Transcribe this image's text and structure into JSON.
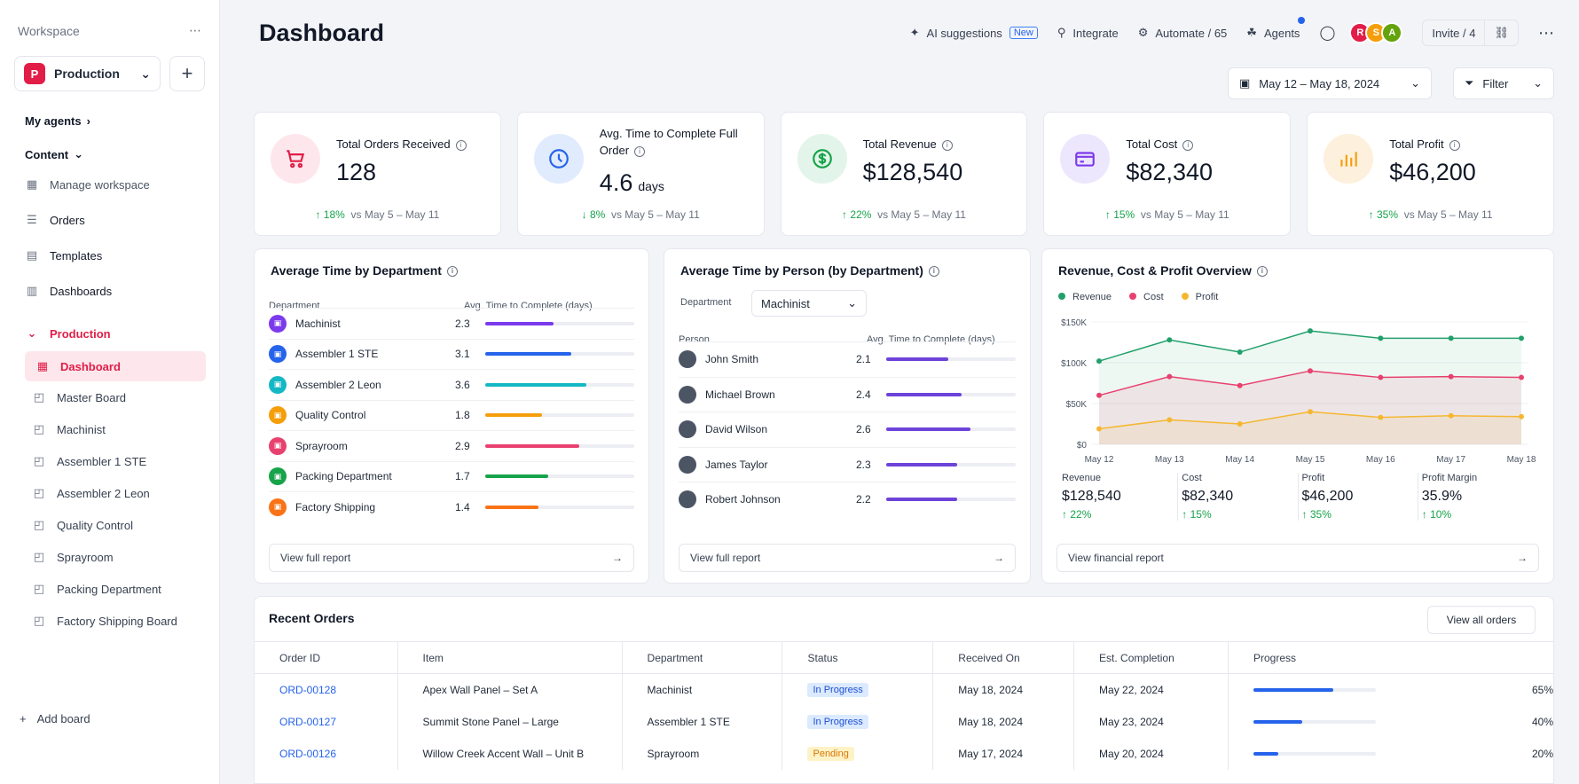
{
  "sidebar": {
    "workspace_label": "Workspace",
    "workspace_badge": "P",
    "workspace_name": "Production",
    "my_agents": "My agents",
    "content": "Content",
    "manage_workspace": "Manage workspace",
    "orders": "Orders",
    "templates": "Templates",
    "dashboards": "Dashboards",
    "production": "Production",
    "boards": [
      "Dashboard",
      "Master Board",
      "Machinist",
      "Assembler 1 STE",
      "Assembler 2 Leon",
      "Quality Control",
      "Sprayroom",
      "Packing Department",
      "Factory Shipping Board"
    ],
    "add_board": "Add board"
  },
  "header": {
    "title": "Dashboard",
    "ai_suggestions": "AI suggestions",
    "new_tag": "New",
    "integrate": "Integrate",
    "automate": "Automate / 65",
    "agents": "Agents",
    "avatars": [
      "R",
      "S",
      "A"
    ],
    "invite": "Invite / 4",
    "date_range": "May 12 – May 18, 2024",
    "filter": "Filter"
  },
  "kpis": [
    {
      "label": "Total Orders Received",
      "value": "128",
      "unit": "",
      "delta": "18%",
      "dir": "up",
      "compare": "vs May 5 – May 11",
      "color": "#e11d48",
      "bg": "#fde7ec"
    },
    {
      "label": "Avg. Time to Complete Full Order",
      "value": "4.6",
      "unit": "days",
      "delta": "8%",
      "dir": "down",
      "compare": "vs May 5 – May 11",
      "color": "#2563eb",
      "bg": "#e0ebfd"
    },
    {
      "label": "Total Revenue",
      "value": "$128,540",
      "unit": "",
      "delta": "22%",
      "dir": "up",
      "compare": "vs May 5 – May 11",
      "color": "#16a34a",
      "bg": "#e3f5ea"
    },
    {
      "label": "Total Cost",
      "value": "$82,340",
      "unit": "",
      "delta": "15%",
      "dir": "up",
      "compare": "vs May 5 – May 11",
      "color": "#7c3aed",
      "bg": "#ede7fd"
    },
    {
      "label": "Total Profit",
      "value": "$46,200",
      "unit": "",
      "delta": "35%",
      "dir": "up",
      "compare": "vs May 5 – May 11",
      "color": "#f59e0b",
      "bg": "#fdf0dc"
    }
  ],
  "dept_panel": {
    "title": "Average Time by Department",
    "col_dept": "Department",
    "col_avg": "Avg. Time to Complete (days)",
    "rows": [
      {
        "name": "Machinist",
        "value": "2.3",
        "frac": 0.46,
        "color": "#7c3aed"
      },
      {
        "name": "Assembler 1 STE",
        "value": "3.1",
        "frac": 0.58,
        "color": "#2563eb"
      },
      {
        "name": "Assembler 2 Leon",
        "value": "3.6",
        "frac": 0.68,
        "color": "#14b8c4"
      },
      {
        "name": "Quality Control",
        "value": "1.8",
        "frac": 0.38,
        "color": "#f59e0b"
      },
      {
        "name": "Sprayroom",
        "value": "2.9",
        "frac": 0.63,
        "color": "#e8416f"
      },
      {
        "name": "Packing Department",
        "value": "1.7",
        "frac": 0.42,
        "color": "#16a34a"
      },
      {
        "name": "Factory Shipping",
        "value": "1.4",
        "frac": 0.36,
        "color": "#f97316"
      }
    ],
    "view": "View full report"
  },
  "person_panel": {
    "title": "Average Time by Person (by Department)",
    "dept_label": "Department",
    "dept_value": "Machinist",
    "col_person": "Person",
    "col_avg": "Avg. Time to Complete (days)",
    "rows": [
      {
        "name": "John Smith",
        "value": "2.1",
        "frac": 0.48
      },
      {
        "name": "Michael Brown",
        "value": "2.4",
        "frac": 0.58
      },
      {
        "name": "David Wilson",
        "value": "2.6",
        "frac": 0.65
      },
      {
        "name": "James Taylor",
        "value": "2.3",
        "frac": 0.55
      },
      {
        "name": "Robert Johnson",
        "value": "2.2",
        "frac": 0.55
      }
    ],
    "view": "View full report"
  },
  "chart_panel": {
    "title": "Revenue, Cost & Profit Overview",
    "summary": [
      {
        "label": "Revenue",
        "value": "$128,540",
        "delta": "22%"
      },
      {
        "label": "Cost",
        "value": "$82,340",
        "delta": "15%"
      },
      {
        "label": "Profit",
        "value": "$46,200",
        "delta": "35%"
      },
      {
        "label": "Profit Margin",
        "value": "35.9%",
        "delta": "10%"
      }
    ],
    "view": "View financial report"
  },
  "chart_data": {
    "type": "line",
    "categories": [
      "May 12",
      "May 13",
      "May 14",
      "May 15",
      "May 16",
      "May 17",
      "May 18"
    ],
    "series": [
      {
        "name": "Revenue",
        "color": "#22a06b",
        "values": [
          102000,
          128000,
          113000,
          139000,
          130000,
          130000,
          130000
        ]
      },
      {
        "name": "Cost",
        "color": "#e8416f",
        "values": [
          60000,
          83000,
          72000,
          90000,
          82000,
          83000,
          82000
        ]
      },
      {
        "name": "Profit",
        "color": "#f5b731",
        "values": [
          19000,
          30000,
          25000,
          40000,
          33000,
          35000,
          34000
        ]
      }
    ],
    "yticks": [
      "$0",
      "$50K",
      "$100K",
      "$150K"
    ],
    "ylim": [
      0,
      150000
    ]
  },
  "orders": {
    "title": "Recent Orders",
    "view_all": "View all orders",
    "columns": [
      "Order ID",
      "Item",
      "Department",
      "Status",
      "Received On",
      "Est. Completion",
      "Progress"
    ],
    "rows": [
      {
        "id": "ORD-00128",
        "item": "Apex Wall Panel – Set A",
        "dept": "Machinist",
        "status": "In Progress",
        "received": "May 18, 2024",
        "est": "May 22, 2024",
        "progress": 0.65,
        "pct": "65%"
      },
      {
        "id": "ORD-00127",
        "item": "Summit Stone Panel – Large",
        "dept": "Assembler 1 STE",
        "status": "In Progress",
        "received": "May 18, 2024",
        "est": "May 23, 2024",
        "progress": 0.4,
        "pct": "40%"
      },
      {
        "id": "ORD-00126",
        "item": "Willow Creek Accent Wall – Unit B",
        "dept": "Sprayroom",
        "status": "Pending",
        "received": "May 17, 2024",
        "est": "May 20, 2024",
        "progress": 0.2,
        "pct": "20%"
      }
    ]
  }
}
